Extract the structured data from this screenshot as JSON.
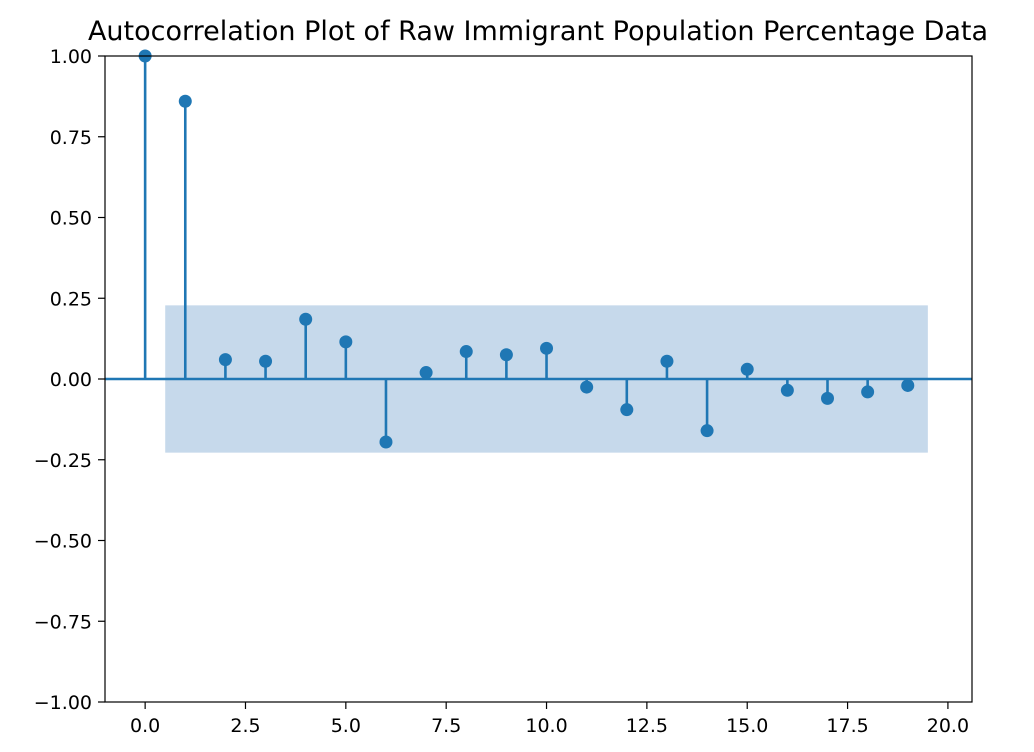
{
  "chart_data": {
    "type": "stem",
    "title": "Autocorrelation Plot of Raw Immigrant Population Percentage Data",
    "xlabel": "",
    "ylabel": "",
    "xlim": [
      -1.0,
      20.6
    ],
    "ylim": [
      -1.0,
      1.0
    ],
    "x_ticks": [
      0.0,
      2.5,
      5.0,
      7.5,
      10.0,
      12.5,
      15.0,
      17.5,
      20.0
    ],
    "x_tick_labels": [
      "0.0",
      "2.5",
      "5.0",
      "7.5",
      "10.0",
      "12.5",
      "15.0",
      "17.5",
      "20.0"
    ],
    "y_ticks": [
      1.0,
      0.75,
      0.5,
      0.25,
      0.0,
      -0.25,
      -0.5,
      -0.75,
      -1.0
    ],
    "y_tick_labels": [
      "1.00",
      "0.75",
      "0.50",
      "0.25",
      "0.00",
      "−0.25",
      "−0.50",
      "−0.75",
      "−1.00"
    ],
    "lags": [
      0,
      1,
      2,
      3,
      4,
      5,
      6,
      7,
      8,
      9,
      10,
      11,
      12,
      13,
      14,
      15,
      16,
      17,
      18,
      19
    ],
    "values": [
      1.0,
      0.86,
      0.06,
      0.055,
      0.185,
      0.115,
      -0.195,
      0.02,
      0.085,
      0.075,
      0.095,
      -0.025,
      -0.095,
      0.055,
      -0.16,
      0.03,
      -0.035,
      -0.06,
      -0.04,
      -0.02
    ],
    "confidence_band": {
      "x_start": 0.5,
      "x_end": 19.5,
      "upper": 0.228,
      "lower": -0.228
    },
    "grid": false,
    "colors": {
      "series": "#1f77b4",
      "band": "#c6d9eb"
    }
  }
}
